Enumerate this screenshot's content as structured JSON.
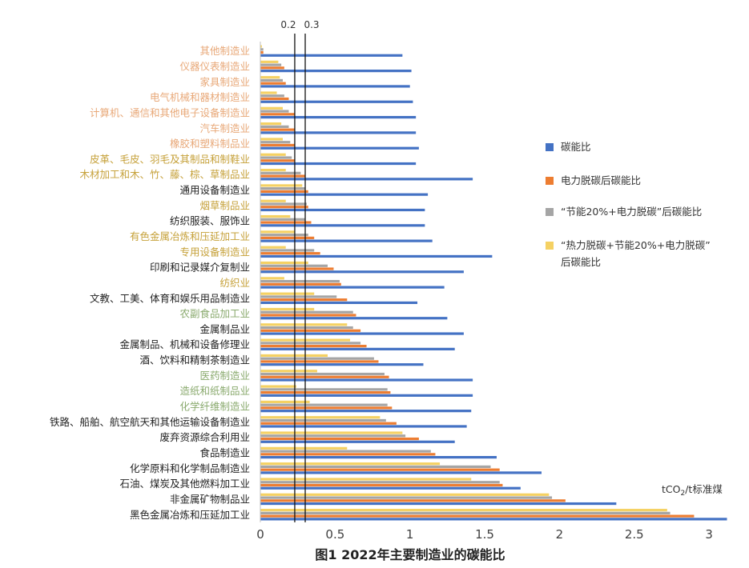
{
  "chart_data": {
    "type": "bar",
    "orientation": "horizontal",
    "title": "图1  2022年主要制造业的碳能比",
    "unit_label": {
      "prefix": "tCO",
      "sub": "2",
      "suffix": "/t标准煤"
    },
    "xlim": [
      0,
      3.15
    ],
    "xticks": [
      "0",
      "0.5",
      "1",
      "1.5",
      "2",
      "2.5",
      "3"
    ],
    "xtick_values": [
      0,
      0.5,
      1,
      1.5,
      2,
      2.5,
      3
    ],
    "reference_lines": [
      {
        "value": 0.23,
        "label": "0.2"
      },
      {
        "value": 0.3,
        "label": "0.3"
      }
    ],
    "category_colors": {
      "group1": "#e8a878",
      "group2": "#c6a13a",
      "group3": "#8aaa6e",
      "group4": "#222222"
    },
    "categories": [
      {
        "name": "其他制造业",
        "group": "group1"
      },
      {
        "name": "仪器仪表制造业",
        "group": "group1"
      },
      {
        "name": "家具制造业",
        "group": "group1"
      },
      {
        "name": "电气机械和器材制造业",
        "group": "group1"
      },
      {
        "name": "计算机、通信和其他电子设备制造业",
        "group": "group1"
      },
      {
        "name": "汽车制造业",
        "group": "group1"
      },
      {
        "name": "橡胶和塑料制品业",
        "group": "group1"
      },
      {
        "name": "皮革、毛皮、羽毛及其制品和制鞋业",
        "group": "group2"
      },
      {
        "name": "木材加工和木、竹、藤、棕、草制品业",
        "group": "group2"
      },
      {
        "name": "通用设备制造业",
        "group": "group4"
      },
      {
        "name": "烟草制品业",
        "group": "group2"
      },
      {
        "name": "纺织服装、服饰业",
        "group": "group4"
      },
      {
        "name": "有色金属冶炼和压延加工业",
        "group": "group2"
      },
      {
        "name": "专用设备制造业",
        "group": "group2"
      },
      {
        "name": "印刷和记录媒介复制业",
        "group": "group4"
      },
      {
        "name": "纺织业",
        "group": "group2"
      },
      {
        "name": "文教、工美、体育和娱乐用品制造业",
        "group": "group4"
      },
      {
        "name": "农副食品加工业",
        "group": "group3"
      },
      {
        "name": "金属制品业",
        "group": "group4"
      },
      {
        "name": "金属制品、机械和设备修理业",
        "group": "group4"
      },
      {
        "name": "酒、饮料和精制茶制造业",
        "group": "group4"
      },
      {
        "name": "医药制造业",
        "group": "group3"
      },
      {
        "name": "造纸和纸制品业",
        "group": "group3"
      },
      {
        "name": "化学纤维制造业",
        "group": "group3"
      },
      {
        "name": "铁路、船舶、航空航天和其他运输设备制造业",
        "group": "group4"
      },
      {
        "name": "废弃资源综合利用业",
        "group": "group4"
      },
      {
        "name": "食品制造业",
        "group": "group4"
      },
      {
        "name": "化学原料和化学制品制造业",
        "group": "group4"
      },
      {
        "name": "石油、煤炭及其他燃料加工业",
        "group": "group4"
      },
      {
        "name": "非金属矿物制品业",
        "group": "group4"
      },
      {
        "name": "黑色金属冶炼和压延加工业",
        "group": "group4"
      }
    ],
    "series": [
      {
        "name": "碳能比",
        "color": "#4472c4",
        "values": [
          0.95,
          1.01,
          1.0,
          1.02,
          1.04,
          1.04,
          1.06,
          1.04,
          1.42,
          1.12,
          1.1,
          1.1,
          1.15,
          1.55,
          1.36,
          1.23,
          1.05,
          1.25,
          1.36,
          1.3,
          1.09,
          1.42,
          1.42,
          1.41,
          1.38,
          1.3,
          1.58,
          1.88,
          1.74,
          2.38,
          3.12
        ]
      },
      {
        "name": "电力脱碳后碳能比",
        "color": "#ed7d31",
        "values": [
          0.02,
          0.16,
          0.17,
          0.19,
          0.23,
          0.23,
          0.23,
          0.23,
          0.3,
          0.32,
          0.32,
          0.34,
          0.36,
          0.4,
          0.49,
          0.54,
          0.58,
          0.64,
          0.67,
          0.71,
          0.79,
          0.86,
          0.87,
          0.88,
          0.91,
          1.06,
          1.17,
          1.6,
          1.62,
          2.04,
          2.9
        ]
      },
      {
        "name": "“节能20%+电力脱碳”后碳能比",
        "color": "#a5a5a5",
        "values": [
          0.02,
          0.14,
          0.15,
          0.16,
          0.19,
          0.19,
          0.2,
          0.21,
          0.27,
          0.3,
          0.31,
          0.3,
          0.32,
          0.36,
          0.45,
          0.53,
          0.51,
          0.62,
          0.62,
          0.67,
          0.76,
          0.83,
          0.85,
          0.85,
          0.84,
          0.97,
          1.14,
          1.54,
          1.6,
          1.95,
          2.74
        ]
      },
      {
        "name": "“热力脱碳+节能20%+电力脱碳”后碳能比",
        "color": "#f5d163",
        "values": [
          0.01,
          0.12,
          0.13,
          0.11,
          0.15,
          0.14,
          0.15,
          0.17,
          0.17,
          0.28,
          0.17,
          0.2,
          0.23,
          0.17,
          0.32,
          0.16,
          0.36,
          0.36,
          0.58,
          0.6,
          0.45,
          0.38,
          0.24,
          0.33,
          0.8,
          0.95,
          0.58,
          1.2,
          1.41,
          1.93,
          2.72
        ]
      }
    ],
    "legend": {
      "items": [
        {
          "line1": "碳能比",
          "line2": ""
        },
        {
          "line1": "电力脱碳后碳能比",
          "line2": ""
        },
        {
          "line1": "“节能20%+电力脱碳”后碳能比",
          "line2": ""
        },
        {
          "line1": "“热力脱碳+节能20%+电力脱碳”",
          "line2": "后碳能比"
        }
      ]
    }
  }
}
